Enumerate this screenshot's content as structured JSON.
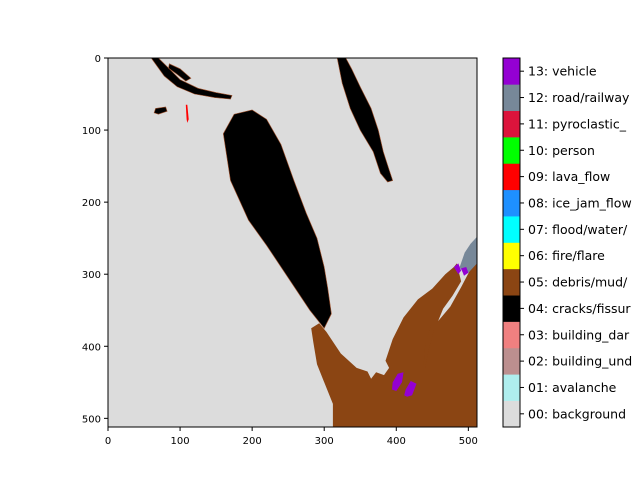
{
  "chart_data": {
    "type": "heatmap",
    "title": "",
    "xlabel": "",
    "ylabel": "",
    "xlim": [
      0,
      512
    ],
    "ylim": [
      512,
      0
    ],
    "x_ticks": [
      0,
      100,
      200,
      300,
      400,
      500
    ],
    "y_ticks": [
      0,
      100,
      200,
      300,
      400,
      500
    ],
    "grid": false,
    "legend_position": "right",
    "classes": [
      {
        "id": 0,
        "label": "00: background",
        "color": "#dcdcdc"
      },
      {
        "id": 1,
        "label": "01: avalanche",
        "color": "#afeeee"
      },
      {
        "id": 2,
        "label": "02: building_und",
        "color": "#bc8f8f"
      },
      {
        "id": 3,
        "label": "03: building_dar",
        "color": "#f08080"
      },
      {
        "id": 4,
        "label": "04: cracks/fissur",
        "color": "#000000"
      },
      {
        "id": 5,
        "label": "05: debris/mud/",
        "color": "#8b4513"
      },
      {
        "id": 6,
        "label": "06: fire/flare",
        "color": "#ffff00"
      },
      {
        "id": 7,
        "label": "07: flood/water/",
        "color": "#00ffff"
      },
      {
        "id": 8,
        "label": "08: ice_jam_flow",
        "color": "#1e90ff"
      },
      {
        "id": 9,
        "label": "09: lava_flow",
        "color": "#ff0000"
      },
      {
        "id": 10,
        "label": "10: person",
        "color": "#00ff00"
      },
      {
        "id": 11,
        "label": "11: pyroclastic_",
        "color": "#dc143c"
      },
      {
        "id": 12,
        "label": "12: road/railway",
        "color": "#778899"
      },
      {
        "id": 13,
        "label": "13: vehicle",
        "color": "#9400d3"
      }
    ],
    "regions": [
      {
        "class": 4,
        "points": [
          [
            160,
            105
          ],
          [
            175,
            78
          ],
          [
            200,
            72
          ],
          [
            220,
            85
          ],
          [
            240,
            120
          ],
          [
            258,
            170
          ],
          [
            275,
            215
          ],
          [
            290,
            250
          ],
          [
            300,
            290
          ],
          [
            305,
            320
          ],
          [
            310,
            355
          ],
          [
            300,
            375
          ],
          [
            280,
            350
          ],
          [
            250,
            305
          ],
          [
            220,
            260
          ],
          [
            195,
            225
          ],
          [
            170,
            170
          ]
        ]
      },
      {
        "class": 4,
        "points": [
          [
            318,
            0
          ],
          [
            330,
            0
          ],
          [
            338,
            15
          ],
          [
            350,
            40
          ],
          [
            365,
            70
          ],
          [
            375,
            100
          ],
          [
            382,
            130
          ],
          [
            390,
            155
          ],
          [
            395,
            170
          ],
          [
            388,
            172
          ],
          [
            378,
            160
          ],
          [
            368,
            130
          ],
          [
            350,
            100
          ],
          [
            336,
            70
          ],
          [
            325,
            35
          ]
        ]
      },
      {
        "class": 4,
        "points": [
          [
            60,
            0
          ],
          [
            70,
            0
          ],
          [
            85,
            15
          ],
          [
            100,
            30
          ],
          [
            125,
            42
          ],
          [
            150,
            48
          ],
          [
            172,
            52
          ],
          [
            170,
            57
          ],
          [
            148,
            55
          ],
          [
            120,
            50
          ],
          [
            96,
            40
          ],
          [
            78,
            25
          ]
        ]
      },
      {
        "class": 4,
        "points": [
          [
            85,
            8
          ],
          [
            100,
            15
          ],
          [
            115,
            28
          ],
          [
            108,
            32
          ],
          [
            95,
            22
          ],
          [
            84,
            14
          ]
        ]
      },
      {
        "class": 4,
        "points": [
          [
            66,
            70
          ],
          [
            80,
            68
          ],
          [
            82,
            74
          ],
          [
            70,
            78
          ],
          [
            64,
            76
          ]
        ]
      },
      {
        "class": 9,
        "points": [
          [
            108,
            65
          ],
          [
            110,
            65
          ],
          [
            112,
            85
          ],
          [
            110,
            90
          ],
          [
            109,
            85
          ]
        ]
      },
      {
        "class": 5,
        "points": [
          [
            312,
            512
          ],
          [
            312,
            480
          ],
          [
            300,
            450
          ],
          [
            290,
            425
          ],
          [
            285,
            395
          ],
          [
            282,
            375
          ],
          [
            293,
            368
          ],
          [
            303,
            380
          ],
          [
            323,
            410
          ],
          [
            345,
            430
          ],
          [
            360,
            435
          ],
          [
            365,
            445
          ],
          [
            372,
            436
          ],
          [
            383,
            440
          ],
          [
            390,
            430
          ],
          [
            385,
            420
          ],
          [
            395,
            390
          ],
          [
            410,
            360
          ],
          [
            430,
            335
          ],
          [
            450,
            320
          ],
          [
            468,
            300
          ],
          [
            480,
            290
          ],
          [
            484,
            285
          ],
          [
            490,
            310
          ],
          [
            478,
            330
          ],
          [
            465,
            348
          ],
          [
            458,
            365
          ],
          [
            475,
            345
          ],
          [
            490,
            318
          ],
          [
            502,
            295
          ],
          [
            512,
            275
          ],
          [
            512,
            512
          ]
        ]
      },
      {
        "class": 5,
        "points": [
          [
            438,
            425
          ],
          [
            440,
            400
          ],
          [
            448,
            370
          ],
          [
            452,
            378
          ],
          [
            445,
            405
          ],
          [
            440,
            430
          ]
        ]
      },
      {
        "class": 12,
        "points": [
          [
            488,
            290
          ],
          [
            495,
            270
          ],
          [
            503,
            258
          ],
          [
            512,
            248
          ],
          [
            512,
            285
          ],
          [
            500,
            298
          ],
          [
            492,
            297
          ]
        ]
      },
      {
        "class": 13,
        "points": [
          [
            395,
            450
          ],
          [
            402,
            438
          ],
          [
            410,
            436
          ],
          [
            408,
            450
          ],
          [
            400,
            462
          ],
          [
            394,
            460
          ]
        ]
      },
      {
        "class": 13,
        "points": [
          [
            413,
            460
          ],
          [
            420,
            448
          ],
          [
            428,
            452
          ],
          [
            422,
            468
          ],
          [
            415,
            470
          ],
          [
            411,
            468
          ]
        ]
      },
      {
        "class": 13,
        "points": [
          [
            480,
            290
          ],
          [
            486,
            285
          ],
          [
            490,
            295
          ],
          [
            486,
            300
          ]
        ]
      },
      {
        "class": 13,
        "points": [
          [
            490,
            292
          ],
          [
            497,
            290
          ],
          [
            500,
            298
          ],
          [
            494,
            302
          ]
        ]
      }
    ]
  }
}
